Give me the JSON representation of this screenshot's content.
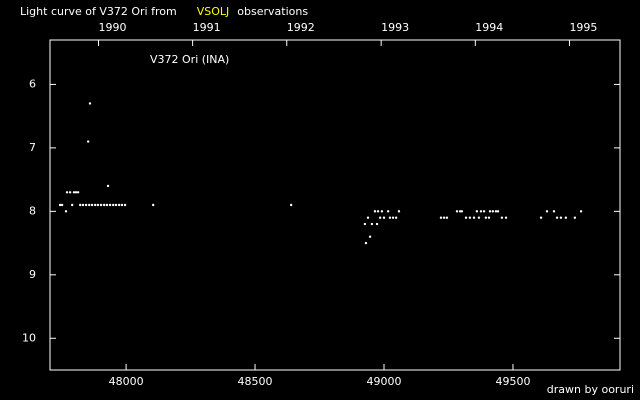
{
  "chart_data": {
    "type": "scatter",
    "title": "Light curve of V372 Ori from",
    "source": "VSOLJ",
    "title_suffix": "observations",
    "annotation": "V372 Ori (INA)",
    "credit": "drawn by ooruri",
    "color": "#ffffff",
    "source_color": "#ffff00",
    "credit_color": "#00ffff",
    "xlim": [
      47705,
      49915
    ],
    "xticks": [
      48000,
      48500,
      49000,
      49500
    ],
    "x2ticks": [
      {
        "value": 47893,
        "label": "1990"
      },
      {
        "value": 48258,
        "label": "1991"
      },
      {
        "value": 48623,
        "label": "1992"
      },
      {
        "value": 48989,
        "label": "1993"
      },
      {
        "value": 49354,
        "label": "1994"
      },
      {
        "value": 49719,
        "label": "1995"
      }
    ],
    "ylim": [
      5.3,
      10.5
    ],
    "yticks": [
      6,
      7,
      8,
      9,
      10
    ],
    "y_inverted": true,
    "x": [
      47744,
      47752,
      47767,
      47771,
      47783,
      47791,
      47798,
      47806,
      47814,
      47822,
      47833,
      47845,
      47857,
      47868,
      47880,
      47891,
      47903,
      47915,
      47926,
      47938,
      47950,
      47961,
      47973,
      47984,
      47996,
      47853,
      47860,
      47930,
      48105,
      48640,
      48926,
      48930,
      48938,
      48946,
      48953,
      48965,
      48973,
      48977,
      48985,
      48992,
      49000,
      49016,
      49023,
      49035,
      49047,
      49058,
      49221,
      49233,
      49244,
      49283,
      49295,
      49302,
      49318,
      49333,
      49349,
      49360,
      49368,
      49376,
      49388,
      49395,
      49407,
      49411,
      49422,
      49434,
      49442,
      49457,
      49473,
      49609,
      49632,
      49659,
      49671,
      49686,
      49705,
      49740,
      49764
    ],
    "values": [
      7.9,
      7.9,
      8.0,
      7.7,
      7.7,
      7.9,
      7.7,
      7.7,
      7.7,
      7.9,
      7.9,
      7.9,
      7.9,
      7.9,
      7.9,
      7.9,
      7.9,
      7.9,
      7.9,
      7.9,
      7.9,
      7.9,
      7.9,
      7.9,
      7.9,
      6.9,
      6.3,
      7.6,
      7.9,
      7.9,
      8.2,
      8.5,
      8.1,
      8.4,
      8.2,
      8.0,
      8.2,
      8.0,
      8.1,
      8.0,
      8.1,
      8.0,
      8.1,
      8.1,
      8.1,
      8.0,
      8.1,
      8.1,
      8.1,
      8.0,
      8.0,
      8.0,
      8.1,
      8.1,
      8.1,
      8.0,
      8.1,
      8.0,
      8.0,
      8.1,
      8.1,
      8.0,
      8.0,
      8.0,
      8.0,
      8.1,
      8.1,
      8.1,
      8.0,
      8.0,
      8.1,
      8.1,
      8.1,
      8.1,
      8.0
    ]
  }
}
